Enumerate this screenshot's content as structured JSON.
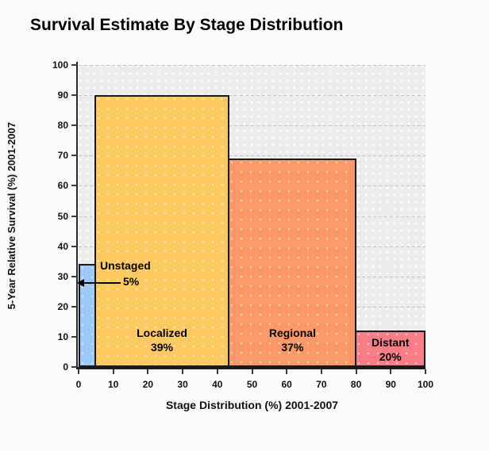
{
  "chart_data": {
    "type": "bar",
    "variant": "variable-width-marimekko",
    "title": "Survival Estimate By Stage Distribution",
    "xlabel": "Stage Distribution (%) 2001-2007",
    "ylabel": "5-Year Relative Survival (%) 2001-2007",
    "xlim": [
      0,
      100
    ],
    "ylim": [
      0,
      100
    ],
    "x_ticks": [
      0,
      10,
      20,
      30,
      40,
      50,
      60,
      70,
      80,
      90,
      100
    ],
    "y_ticks": [
      0,
      10,
      20,
      30,
      40,
      50,
      60,
      70,
      80,
      90,
      100
    ],
    "grid": "horizontal-dashed",
    "legend": "none",
    "bars": [
      {
        "name": "Unstaged",
        "stage_distribution_pct": 5,
        "survival_pct": 34,
        "label_line1": "Unstaged",
        "label_line2": "5%",
        "color": "#9CC9F7",
        "label_placement": "external-arrow"
      },
      {
        "name": "Localized",
        "stage_distribution_pct": 39,
        "survival_pct": 90,
        "label_line1": "Localized",
        "label_line2": "39%",
        "color": "#FFC961",
        "label_placement": "inside-bottom"
      },
      {
        "name": "Regional",
        "stage_distribution_pct": 37,
        "survival_pct": 69,
        "label_line1": "Regional",
        "label_line2": "37%",
        "color": "#FB9A68",
        "label_placement": "inside-bottom"
      },
      {
        "name": "Distant",
        "stage_distribution_pct": 20,
        "survival_pct": 12,
        "label_line1": "Distant",
        "label_line2": "20%",
        "color": "#F97E87",
        "label_placement": "inside-bottom"
      }
    ],
    "colors": {
      "page_bg": "#FBFBFB",
      "plot_bg": "#ECECEC",
      "gridline": "#C3C3C3",
      "axis": "#1A1A1A",
      "bar_border": "#1A1A1A",
      "text": "#000000"
    }
  }
}
